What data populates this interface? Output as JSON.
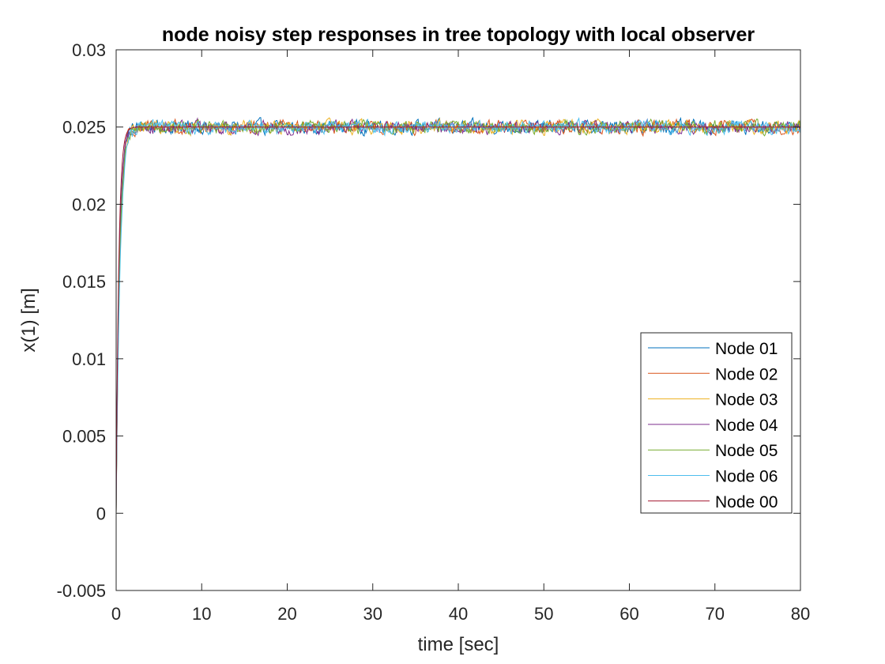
{
  "chart_data": {
    "type": "line",
    "title": "node noisy step responses in tree topology with local observer",
    "xlabel": "time [sec]",
    "ylabel": "x(1) [m]",
    "xlim": [
      0,
      80
    ],
    "ylim": [
      -0.005,
      0.03
    ],
    "xticks": [
      0,
      10,
      20,
      30,
      40,
      50,
      60,
      70,
      80
    ],
    "yticks": [
      -0.005,
      0,
      0.005,
      0.01,
      0.015,
      0.02,
      0.025,
      0.03
    ],
    "xtick_labels": [
      "0",
      "10",
      "20",
      "30",
      "40",
      "50",
      "60",
      "70",
      "80"
    ],
    "ytick_labels": [
      "-0.005",
      "0",
      "0.005",
      "0.01",
      "0.015",
      "0.02",
      "0.025",
      "0.03"
    ],
    "grid": false,
    "box": true,
    "legend_position": "right",
    "steady_state": 0.025,
    "noise_amplitude": 0.0004,
    "series": [
      {
        "name": "Node 01",
        "color": "#0072BD",
        "time_constant": 0.35,
        "noisy": true
      },
      {
        "name": "Node 02",
        "color": "#D95319",
        "time_constant": 0.38,
        "noisy": true
      },
      {
        "name": "Node 03",
        "color": "#EDB120",
        "time_constant": 0.42,
        "noisy": true
      },
      {
        "name": "Node 04",
        "color": "#7E2F8E",
        "time_constant": 0.36,
        "noisy": true
      },
      {
        "name": "Node 05",
        "color": "#77AC30",
        "time_constant": 0.4,
        "noisy": true
      },
      {
        "name": "Node 06",
        "color": "#4DBEEE",
        "time_constant": 0.45,
        "noisy": true
      },
      {
        "name": "Node 00",
        "color": "#A2142F",
        "time_constant": 0.3,
        "noisy": false
      }
    ]
  }
}
